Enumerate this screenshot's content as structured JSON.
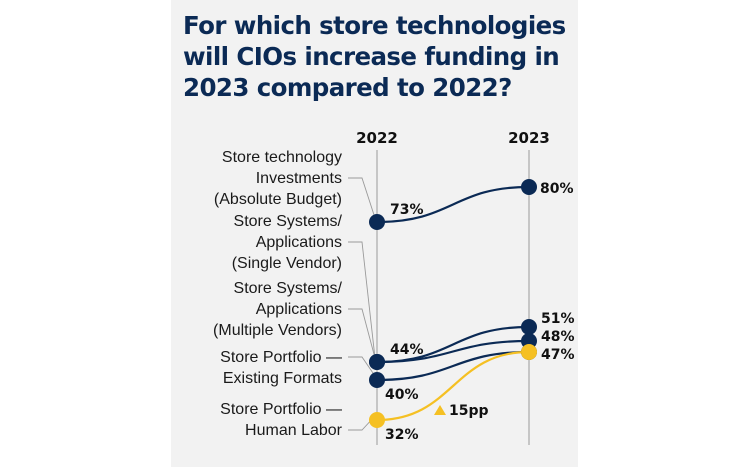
{
  "title": "For which store technologies will CIOs increase funding in 2023 compared to 2022?",
  "chart_data": {
    "type": "line",
    "chart_style": "slope",
    "title": "For which store technologies will CIOs increase funding in 2023 compared to 2022?",
    "x": [
      "2022",
      "2023"
    ],
    "xlabel": "",
    "ylabel": "",
    "unit": "%",
    "grid": false,
    "legend": "none",
    "colors": {
      "primary": "#0b2a55",
      "highlight": "#f5c023",
      "axis": "#9a9a9a",
      "background": "#f2f2f2"
    },
    "series": [
      {
        "name": "Store technology Investments (Absolute Budget)",
        "label_lines": [
          "Store technology",
          "Investments",
          "(Absolute Budget)"
        ],
        "values": [
          73,
          80
        ],
        "labels": [
          "73%",
          "80%"
        ],
        "highlight": false
      },
      {
        "name": "Store Systems/ Applications (Single Vendor)",
        "label_lines": [
          "Store Systems/",
          "Applications",
          "(Single Vendor)"
        ],
        "values": [
          44,
          51
        ],
        "labels": [
          "44%",
          "51%"
        ],
        "highlight": false
      },
      {
        "name": "Store Systems/ Applications (Multiple Vendors)",
        "label_lines": [
          "Store Systems/",
          "Applications",
          "(Multiple Vendors)"
        ],
        "values": [
          44,
          48
        ],
        "labels": [
          "",
          "48%"
        ],
        "highlight": false
      },
      {
        "name": "Store Portfolio — Existing Formats",
        "label_lines": [
          "Store Portfolio —",
          "Existing Formats"
        ],
        "values": [
          40,
          47
        ],
        "labels": [
          "40%",
          ""
        ],
        "highlight": false
      },
      {
        "name": "Store Portfolio — Human Labor",
        "label_lines": [
          "Store Portfolio —",
          "Human Labor"
        ],
        "values": [
          32,
          47
        ],
        "labels": [
          "32%",
          "47%"
        ],
        "highlight": true
      }
    ],
    "annotations": [
      {
        "text": "15pp",
        "icon": "triangle-up-icon",
        "series": "Store Portfolio — Human Labor"
      }
    ]
  }
}
